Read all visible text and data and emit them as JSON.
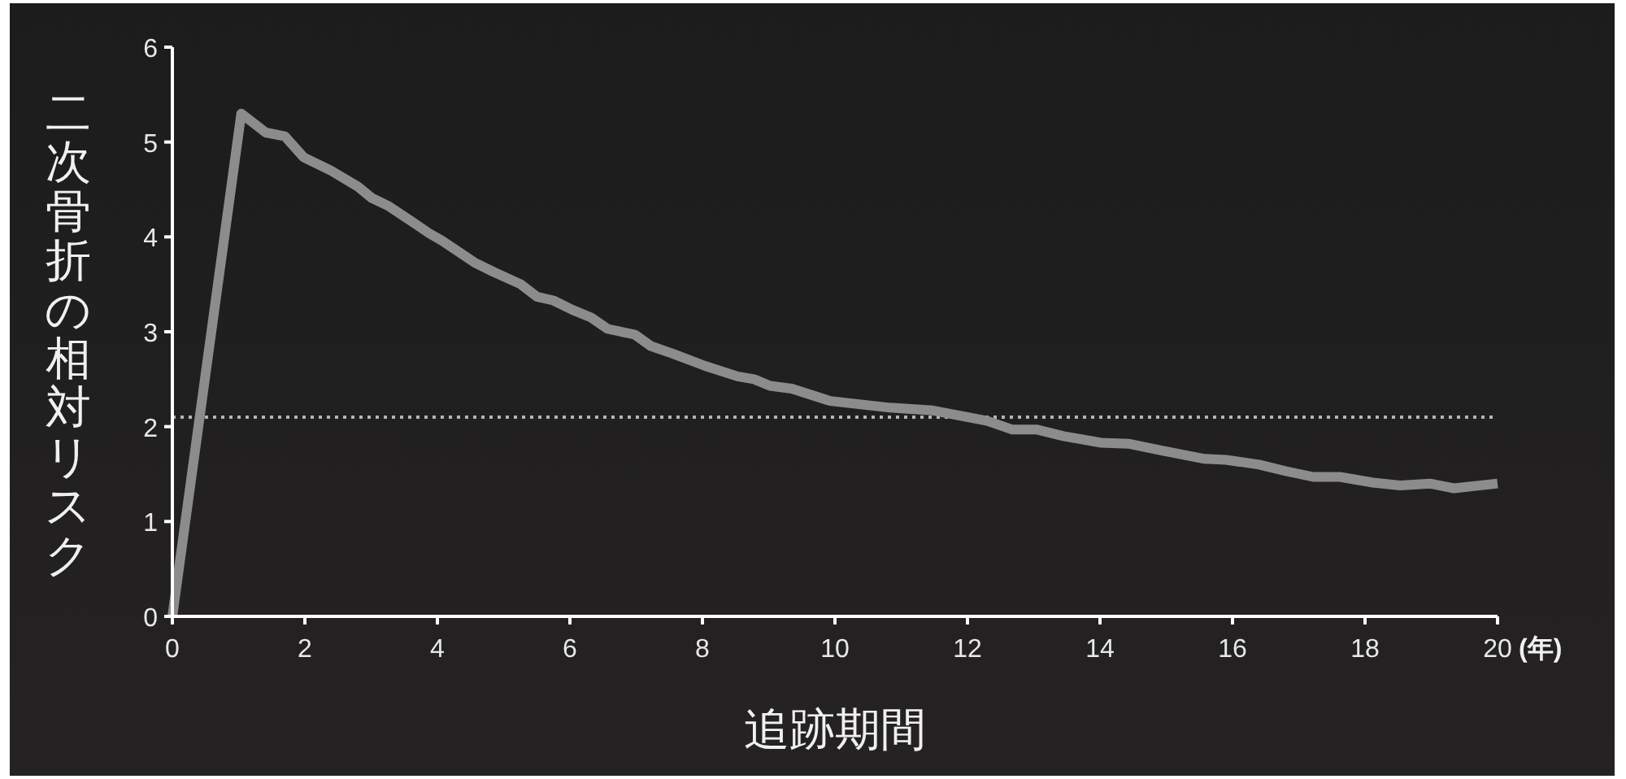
{
  "chart_data": {
    "type": "line",
    "xlabel": "追跡期間",
    "ylabel": "二次骨折の相対リスク",
    "annotations": [
      "(年)"
    ],
    "x": [
      0,
      1.04,
      1.41,
      1.7,
      1.98,
      2.39,
      2.8,
      3.01,
      3.25,
      3.62,
      3.87,
      4.07,
      4.56,
      4.85,
      5.26,
      5.5,
      5.75,
      6.04,
      6.32,
      6.57,
      6.98,
      7.22,
      7.55,
      8.04,
      8.53,
      8.78,
      9.02,
      9.35,
      9.93,
      10.83,
      11.48,
      12.3,
      12.67,
      13.04,
      13.45,
      14.02,
      14.43,
      14.92,
      15.58,
      15.9,
      16.4,
      16.81,
      17.22,
      17.62,
      18.12,
      18.53,
      18.98,
      19.34,
      20.0
    ],
    "series": [
      {
        "color": "#8c8c8c",
        "values": [
          0,
          5.3,
          5.1,
          5.06,
          4.84,
          4.7,
          4.53,
          4.41,
          4.33,
          4.16,
          4.04,
          3.96,
          3.73,
          3.63,
          3.5,
          3.37,
          3.33,
          3.23,
          3.15,
          3.03,
          2.97,
          2.85,
          2.77,
          2.64,
          2.53,
          2.5,
          2.43,
          2.4,
          2.27,
          2.2,
          2.17,
          2.06,
          1.97,
          1.97,
          1.9,
          1.83,
          1.82,
          1.75,
          1.66,
          1.65,
          1.6,
          1.53,
          1.47,
          1.47,
          1.41,
          1.38,
          1.4,
          1.35,
          1.4
        ]
      }
    ],
    "xlim": [
      0,
      20
    ],
    "ylim": [
      0,
      6
    ],
    "xticks": [
      0,
      2,
      4,
      6,
      8,
      10,
      12,
      14,
      16,
      18,
      20
    ],
    "yticks": [
      0,
      1,
      2,
      3,
      4,
      5,
      6
    ],
    "ref_lines": [
      {
        "axis": "y",
        "value": 2.1,
        "color": "#b4b4b4",
        "line_style": "dotted"
      }
    ],
    "grid": false,
    "marker": "none",
    "line_style": "solid"
  }
}
